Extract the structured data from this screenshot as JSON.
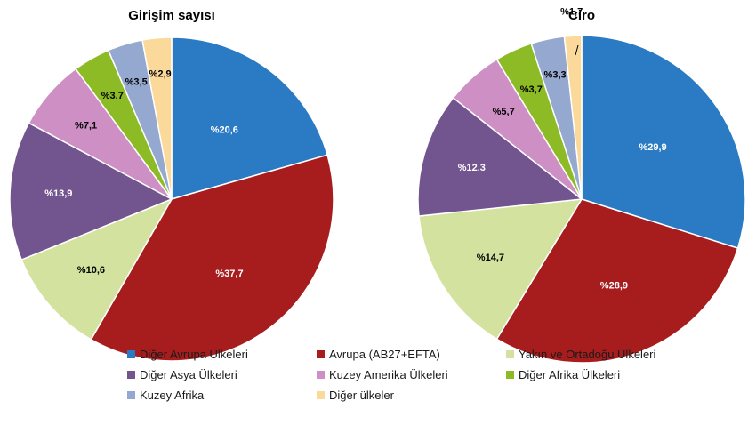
{
  "chart_data": [
    {
      "type": "pie",
      "title": "Girişim sayısı",
      "categories": [
        "Diğer Avrupa Ülkeleri",
        "Avrupa (AB27+EFTA)",
        "Yakın ve Ortadoğu Ülkeleri",
        "Diğer Asya Ülkeleri",
        "Kuzey Amerika Ülkeleri",
        "Diğer Afrika Ülkeleri",
        "Kuzey Afrika",
        "Diğer ülkeler"
      ],
      "values": [
        20.6,
        37.7,
        10.6,
        13.9,
        7.1,
        3.7,
        3.5,
        2.9
      ],
      "labels": [
        "%20,6",
        "%37,7",
        "%10,6",
        "%13,9",
        "%7,1",
        "%3,7",
        "%3,5",
        "%2,9"
      ]
    },
    {
      "type": "pie",
      "title": "Ciro",
      "categories": [
        "Diğer Avrupa Ülkeleri",
        "Avrupa (AB27+EFTA)",
        "Yakın ve Ortadoğu Ülkeleri",
        "Diğer Asya Ülkeleri",
        "Kuzey Amerika Ülkeleri",
        "Diğer Afrika Ülkeleri",
        "Kuzey Afrika",
        "Diğer ülkeler"
      ],
      "values": [
        29.9,
        28.9,
        14.7,
        12.3,
        5.7,
        3.7,
        3.3,
        1.7
      ],
      "labels": [
        "%29,9",
        "%28,9",
        "%14,7",
        "%12,3",
        "%5,7",
        "%3,7",
        "%3,3",
        "%1,7"
      ]
    }
  ],
  "legend": {
    "items": [
      {
        "label": "Diğer Avrupa Ülkeleri",
        "color": "#2a7bc3"
      },
      {
        "label": "Avrupa (AB27+EFTA)",
        "color": "#a71d1d"
      },
      {
        "label": "Yakın ve Ortadoğu Ülkeleri",
        "color": "#d3e29f"
      },
      {
        "label": "Diğer Asya Ülkeleri",
        "color": "#72548f"
      },
      {
        "label": "Kuzey Amerika Ülkeleri",
        "color": "#cd8fc4"
      },
      {
        "label": "Diğer Afrika Ülkeleri",
        "color": "#8dbb26"
      },
      {
        "label": "Kuzey Afrika",
        "color": "#95a8d0"
      },
      {
        "label": "Diğer ülkeler",
        "color": "#fbd99a"
      }
    ]
  },
  "label_colors": [
    "#ffffff",
    "#ffffff",
    "#000000",
    "#ffffff",
    "#000000",
    "#000000",
    "#000000",
    "#000000"
  ]
}
